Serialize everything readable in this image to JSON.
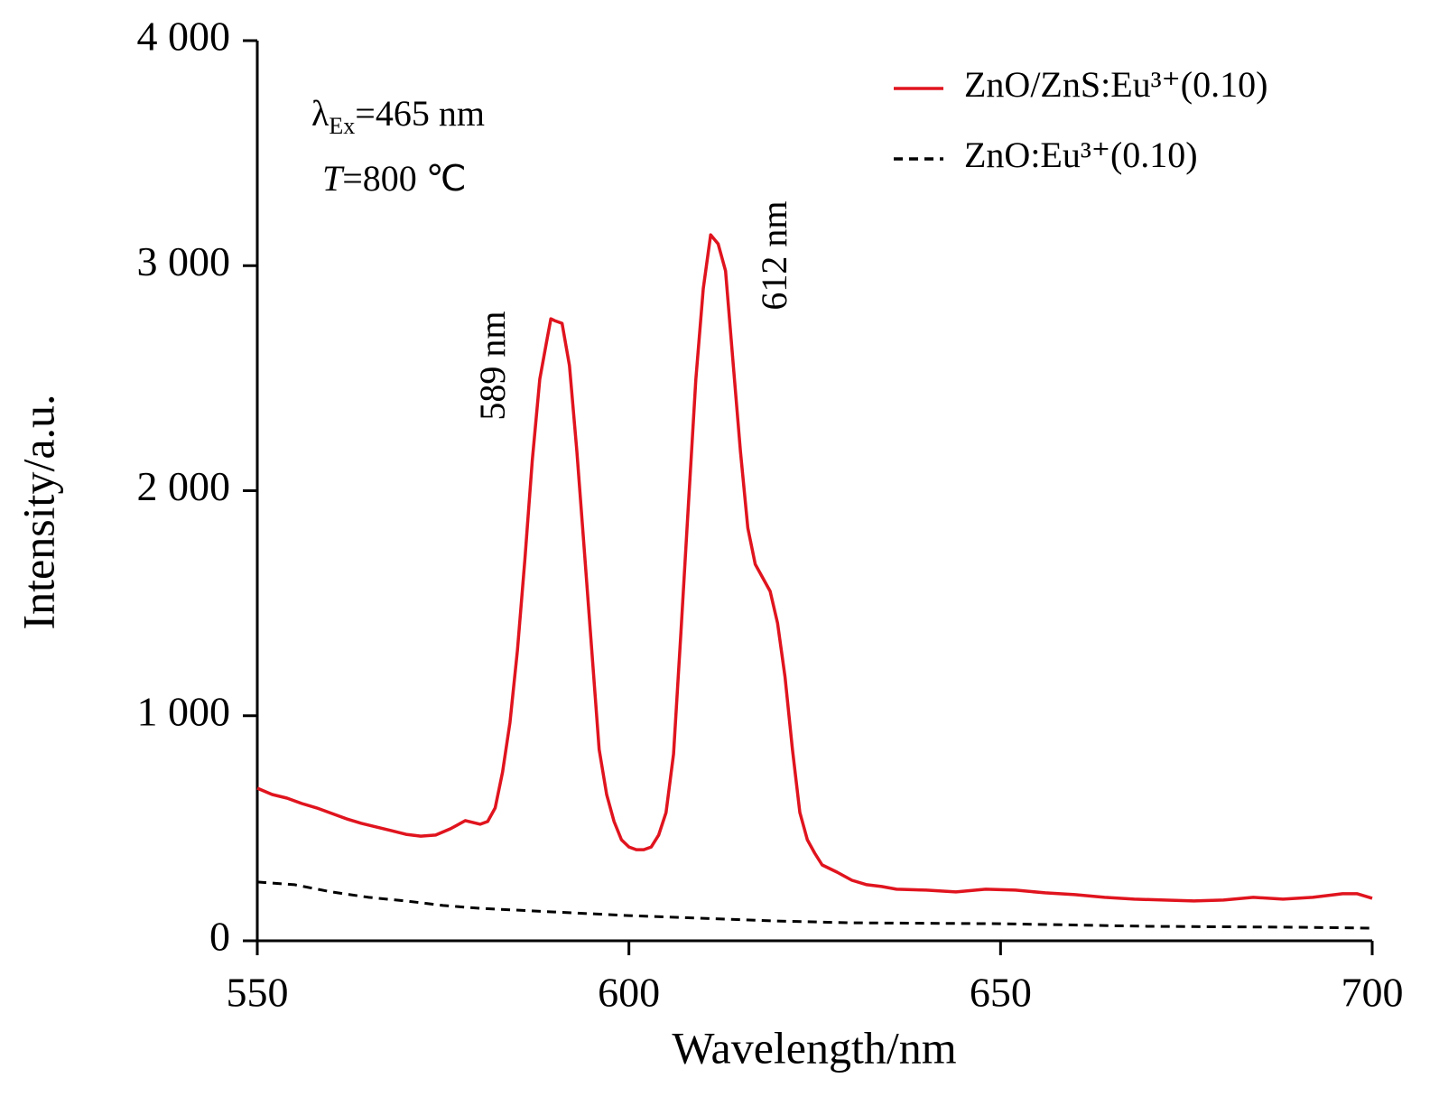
{
  "chart_data": {
    "type": "line",
    "xlabel": "Wavelength/nm",
    "ylabel": "Intensity/a.u.",
    "xlim": [
      550,
      700
    ],
    "xticks": [
      550,
      600,
      650,
      700
    ],
    "ylim": [
      0,
      4000
    ],
    "yticks": [
      0,
      {
        "value": 1000,
        "label": "1 000"
      },
      {
        "value": 2000,
        "label": "2 000"
      },
      {
        "value": 3000,
        "label": "3 000"
      },
      {
        "value": 4000,
        "label": "4 000"
      }
    ],
    "legend": "upper right",
    "annotations": {
      "excitation": [
        "λ",
        "Ex",
        "=465 nm"
      ],
      "temperature": [
        "T",
        "=800 ℃"
      ],
      "peak1": "589 nm",
      "peak2": "612 nm"
    },
    "series": [
      {
        "name": "ZnO/ZnS:Eu³⁺(0.10)",
        "color": "#e0141e",
        "dash": false,
        "x": [
          550,
          552,
          554,
          556,
          558,
          560,
          562,
          564,
          566,
          568,
          570,
          572,
          574,
          576,
          578,
          579,
          580,
          581,
          582,
          583,
          584,
          585,
          586,
          587,
          588,
          589,
          589.5,
          590,
          591,
          592,
          593,
          594,
          595,
          596,
          597,
          598,
          599,
          600,
          601,
          602,
          603,
          604,
          605,
          606,
          607,
          608,
          609,
          610,
          611,
          612,
          613,
          614,
          615,
          616,
          617,
          618,
          619,
          620,
          621,
          622,
          623,
          624,
          625,
          626,
          628,
          630,
          632,
          634,
          636,
          640,
          644,
          648,
          652,
          656,
          660,
          664,
          668,
          672,
          676,
          680,
          684,
          688,
          692,
          696,
          698,
          700
        ],
        "values": [
          678,
          650,
          634,
          610,
          590,
          566,
          542,
          522,
          506,
          490,
          473,
          465,
          470,
          498,
          534,
          526,
          518,
          530,
          590,
          750,
          970,
          1292,
          1693,
          2134,
          2495,
          2676,
          2764,
          2756,
          2744,
          2556,
          2175,
          1733,
          1292,
          850,
          650,
          530,
          449,
          417,
          405,
          405,
          417,
          470,
          570,
          830,
          1372,
          1934,
          2495,
          2897,
          3137,
          3097,
          2977,
          2576,
          2175,
          1834,
          1673,
          1613,
          1553,
          1412,
          1172,
          850,
          570,
          449,
          389,
          337,
          305,
          269,
          249,
          241,
          229,
          225,
          217,
          229,
          225,
          213,
          205,
          193,
          185,
          181,
          177,
          181,
          193,
          185,
          193,
          209,
          209,
          189
        ]
      },
      {
        "name": "ZnO:Eu³⁺(0.10)",
        "color": "#000000",
        "dash": true,
        "x": [
          550,
          555,
          560,
          565,
          570,
          575,
          580,
          590,
          600,
          610,
          620,
          630,
          650,
          670,
          690,
          700
        ],
        "values": [
          261,
          249,
          217,
          193,
          177,
          157,
          144,
          128,
          112,
          100,
          88,
          80,
          76,
          64,
          60,
          56
        ]
      }
    ]
  }
}
